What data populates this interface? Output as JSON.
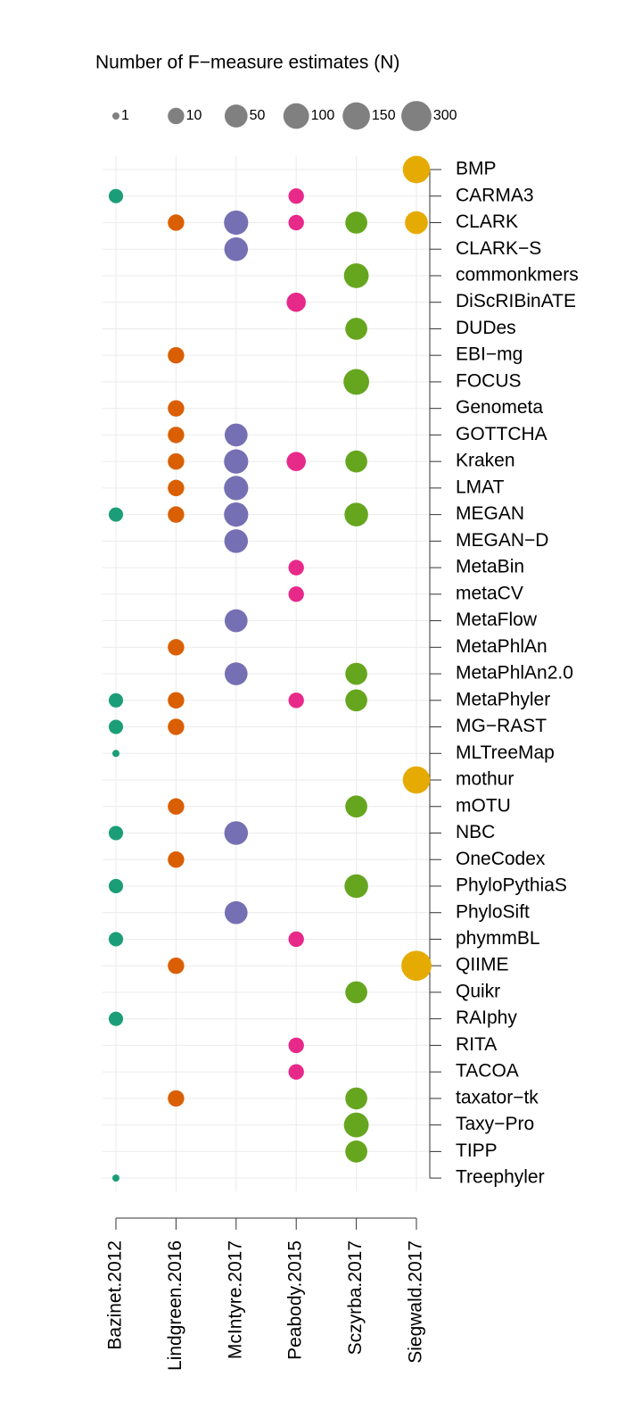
{
  "chart_data": {
    "type": "bubble",
    "size_legend": {
      "title": "Number of F−measure estimates (N)",
      "values": [
        1,
        10,
        50,
        100,
        150,
        300
      ]
    },
    "legend_color": "#808080",
    "grid": true,
    "categories": [
      "BMP",
      "CARMA3",
      "CLARK",
      "CLARK−S",
      "commonkmers",
      "DiScRIBinATE",
      "DUDes",
      "EBI−mg",
      "FOCUS",
      "Genometa",
      "GOTTCHA",
      "Kraken",
      "LMAT",
      "MEGAN",
      "MEGAN−D",
      "MetaBin",
      "metaCV",
      "MetaFlow",
      "MetaPhlAn",
      "MetaPhlAn2.0",
      "MetaPhyler",
      "MG−RAST",
      "MLTreeMap",
      "mothur",
      "mOTU",
      "NBC",
      "OneCodex",
      "PhyloPythiaS",
      "PhyloSift",
      "phymmBL",
      "QIIME",
      "Quikr",
      "RAIphy",
      "RITA",
      "TACOA",
      "taxator−tk",
      "Taxy−Pro",
      "TIPP",
      "Treephyler"
    ],
    "series": [
      {
        "name": "Bazinet.2012",
        "color": "#1b9e77",
        "values": [
          null,
          6,
          null,
          null,
          null,
          null,
          null,
          null,
          null,
          null,
          null,
          null,
          null,
          6,
          null,
          null,
          null,
          null,
          null,
          null,
          6,
          6,
          1,
          null,
          null,
          6,
          null,
          6,
          null,
          6,
          null,
          null,
          6,
          null,
          null,
          null,
          null,
          null,
          1
        ]
      },
      {
        "name": "Lindgreen.2016",
        "color": "#d95f02",
        "values": [
          null,
          null,
          10,
          null,
          null,
          null,
          null,
          10,
          null,
          10,
          10,
          10,
          10,
          10,
          null,
          null,
          null,
          null,
          10,
          null,
          10,
          10,
          null,
          null,
          10,
          null,
          10,
          null,
          null,
          null,
          10,
          null,
          null,
          null,
          null,
          10,
          null,
          null,
          null
        ]
      },
      {
        "name": "McIntyre.2017",
        "color": "#7570b3",
        "values": [
          null,
          null,
          70,
          60,
          null,
          null,
          null,
          null,
          null,
          null,
          50,
          70,
          70,
          70,
          60,
          null,
          null,
          50,
          null,
          50,
          null,
          null,
          null,
          null,
          null,
          60,
          null,
          null,
          50,
          null,
          null,
          null,
          null,
          null,
          null,
          null,
          null,
          null,
          null
        ]
      },
      {
        "name": "Peabody.2015",
        "color": "#e7298a",
        "values": [
          null,
          8,
          8,
          null,
          null,
          20,
          null,
          null,
          null,
          null,
          null,
          20,
          null,
          null,
          null,
          8,
          8,
          null,
          null,
          null,
          8,
          null,
          null,
          null,
          null,
          null,
          null,
          null,
          null,
          8,
          null,
          null,
          null,
          8,
          8,
          null,
          null,
          null,
          null
        ]
      },
      {
        "name": "Sczyrba.2017",
        "color": "#66a61e",
        "values": [
          null,
          null,
          40,
          null,
          80,
          null,
          40,
          null,
          100,
          null,
          null,
          40,
          null,
          60,
          null,
          null,
          null,
          null,
          null,
          40,
          40,
          null,
          null,
          null,
          40,
          null,
          null,
          60,
          null,
          null,
          null,
          40,
          null,
          null,
          null,
          40,
          80,
          40,
          null
        ]
      },
      {
        "name": "Siegwald.2017",
        "color": "#e6ab02",
        "values": [
          150,
          null,
          50,
          null,
          null,
          null,
          null,
          null,
          null,
          null,
          null,
          null,
          null,
          null,
          null,
          null,
          null,
          null,
          null,
          null,
          null,
          null,
          null,
          150,
          null,
          null,
          null,
          null,
          null,
          null,
          300,
          null,
          null,
          null,
          null,
          null,
          null,
          null,
          null
        ]
      }
    ]
  }
}
